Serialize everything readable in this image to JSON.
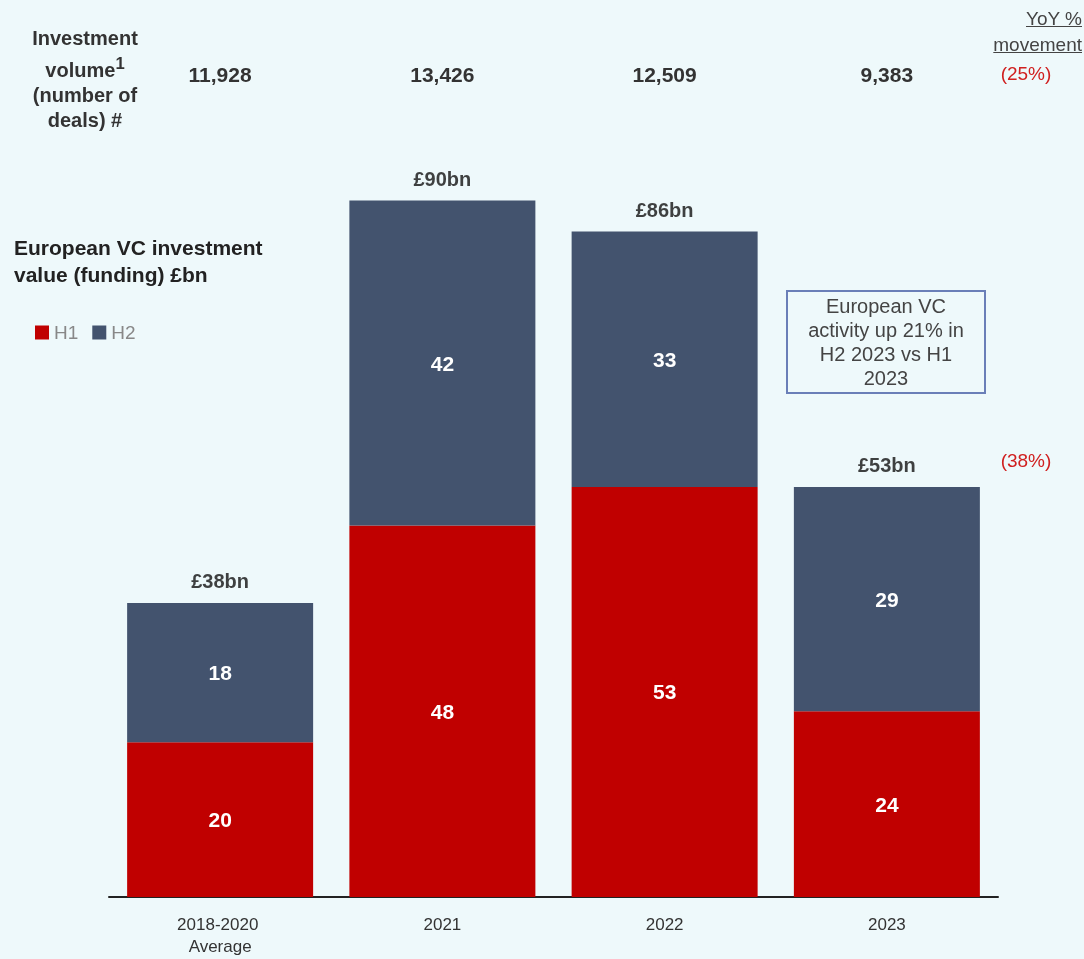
{
  "chart_data": {
    "type": "bar",
    "stacked": true,
    "ylabel": "European VC investment value (funding) £bn",
    "categories": [
      "2018-2020 Average",
      "2021",
      "2022",
      "2023"
    ],
    "series": [
      {
        "name": "H1",
        "color": "#c00000",
        "values": [
          20,
          48,
          53,
          24
        ]
      },
      {
        "name": "H2",
        "color": "#43536e",
        "values": [
          18,
          42,
          33,
          29
        ]
      }
    ],
    "data_labels": true,
    "totals": [
      "£38bn",
      "£90bn",
      "£86bn",
      "£53bn"
    ],
    "legend": "top left",
    "annotations": [
      "Investment volume$^{1}$ (number of deals) #",
      "11,928",
      "13,426",
      "12,509",
      "9,383",
      "YoY % movement",
      "(25%)",
      "(38%)",
      "European VC activity up 21% in H2 2023 vs H1 2023"
    ]
  }
}
